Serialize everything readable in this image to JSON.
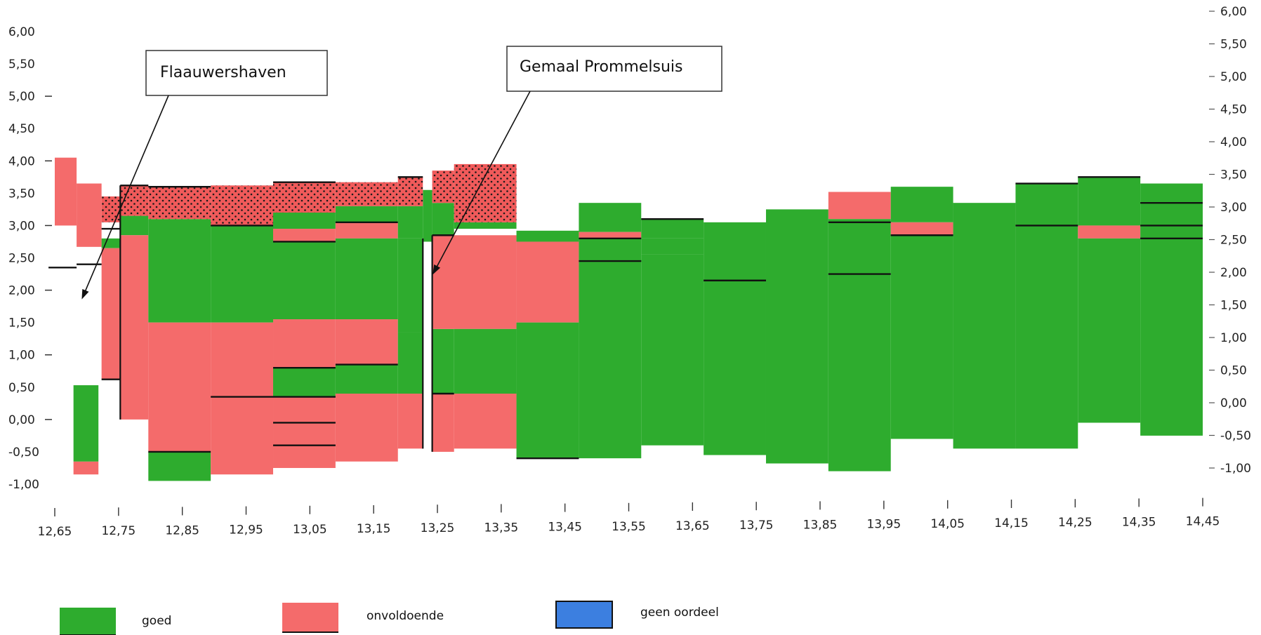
{
  "chart_data": {
    "type": "area",
    "x_axis": {
      "range": [
        12.65,
        14.49
      ],
      "ticks": [
        "12,65",
        "12,75",
        "12,85",
        "12,95",
        "13,05",
        "13,15",
        "13,25",
        "13,35",
        "13,45",
        "13,55",
        "13,65",
        "13,75",
        "13,85",
        "13,95",
        "14,05",
        "14,15",
        "14,25",
        "14,35",
        "14,45"
      ]
    },
    "y_axis_left": {
      "range": [
        -1.0,
        6.0
      ],
      "ticks": [
        "6,00",
        "5,50",
        "5,00",
        "4,50",
        "4,00",
        "3,50",
        "3,00",
        "2,50",
        "2,00",
        "1,50",
        "1,00",
        "0,50",
        "0,00",
        "-0,50",
        "-1,00"
      ]
    },
    "y_axis_right": {
      "range": [
        -1.0,
        6.0
      ],
      "ticks": [
        "6,00",
        "5,50",
        "5,00",
        "4,50",
        "4,00",
        "3,50",
        "3,00",
        "2,50",
        "2,00",
        "1,50",
        "1,00",
        "0,50",
        "0,00",
        "-0,50",
        "-1,00"
      ]
    },
    "categories": [
      "goed",
      "onvoldoende",
      "geen oordeel"
    ],
    "colors": {
      "goed": "#2eac2e",
      "onvoldoende": "#f46b6b",
      "geen oordeel": "#3c7fe0",
      "dotted": "#f05a5a",
      "line": "#111111"
    },
    "blocks": [
      {
        "x0": 12.65,
        "x1": 12.685,
        "y0": 3.0,
        "y1": 4.05,
        "c": "onvoldoende"
      },
      {
        "x0": 12.685,
        "x1": 12.725,
        "y0": 2.67,
        "y1": 3.65,
        "c": "onvoldoende"
      },
      {
        "x0": 12.68,
        "x1": 12.72,
        "y0": -0.85,
        "y1": -0.65,
        "c": "onvoldoende"
      },
      {
        "x0": 12.68,
        "x1": 12.72,
        "y0": -0.65,
        "y1": 0.53,
        "c": "goed"
      },
      {
        "x0": 12.725,
        "x1": 12.755,
        "y0": 2.65,
        "y1": 2.8,
        "c": "goed"
      },
      {
        "x0": 12.725,
        "x1": 12.755,
        "y0": 0.63,
        "y1": 2.65,
        "c": "onvoldoende"
      },
      {
        "x0": 12.755,
        "x1": 12.8,
        "y0": 2.85,
        "y1": 3.15,
        "c": "goed"
      },
      {
        "x0": 12.755,
        "x1": 12.8,
        "y0": 0.0,
        "y1": 2.85,
        "c": "onvoldoende"
      },
      {
        "x0": 12.8,
        "x1": 12.9,
        "y0": 1.5,
        "y1": 3.1,
        "c": "goed"
      },
      {
        "x0": 12.8,
        "x1": 12.9,
        "y0": -0.5,
        "y1": 1.5,
        "c": "onvoldoende"
      },
      {
        "x0": 12.8,
        "x1": 12.9,
        "y0": -0.95,
        "y1": -0.5,
        "c": "goed"
      },
      {
        "x0": 12.9,
        "x1": 13.0,
        "y0": 1.5,
        "y1": 3.0,
        "c": "goed"
      },
      {
        "x0": 12.9,
        "x1": 13.0,
        "y0": 0.35,
        "y1": 1.5,
        "c": "onvoldoende"
      },
      {
        "x0": 12.9,
        "x1": 13.0,
        "y0": -0.85,
        "y1": 0.35,
        "c": "onvoldoende"
      },
      {
        "x0": 13.0,
        "x1": 13.1,
        "y0": 2.95,
        "y1": 3.2,
        "c": "goed"
      },
      {
        "x0": 13.0,
        "x1": 13.1,
        "y0": 2.75,
        "y1": 2.95,
        "c": "onvoldoende"
      },
      {
        "x0": 13.0,
        "x1": 13.1,
        "y0": 1.55,
        "y1": 2.75,
        "c": "goed"
      },
      {
        "x0": 13.0,
        "x1": 13.1,
        "y0": 0.8,
        "y1": 1.55,
        "c": "onvoldoende"
      },
      {
        "x0": 13.0,
        "x1": 13.1,
        "y0": 0.35,
        "y1": 0.8,
        "c": "goed"
      },
      {
        "x0": 13.0,
        "x1": 13.1,
        "y0": -0.75,
        "y1": 0.35,
        "c": "onvoldoende"
      },
      {
        "x0": 13.1,
        "x1": 13.2,
        "y0": 3.05,
        "y1": 3.3,
        "c": "goed"
      },
      {
        "x0": 13.1,
        "x1": 13.2,
        "y0": 2.8,
        "y1": 3.05,
        "c": "onvoldoende"
      },
      {
        "x0": 13.1,
        "x1": 13.2,
        "y0": 1.55,
        "y1": 2.8,
        "c": "goed"
      },
      {
        "x0": 13.1,
        "x1": 13.2,
        "y0": 0.85,
        "y1": 1.55,
        "c": "onvoldoende"
      },
      {
        "x0": 13.1,
        "x1": 13.2,
        "y0": 0.4,
        "y1": 0.85,
        "c": "goed"
      },
      {
        "x0": 13.1,
        "x1": 13.2,
        "y0": -0.65,
        "y1": 0.4,
        "c": "onvoldoende"
      },
      {
        "x0": 13.2,
        "x1": 13.24,
        "y0": 2.8,
        "y1": 3.3,
        "c": "goed"
      },
      {
        "x0": 13.2,
        "x1": 13.24,
        "y0": 1.35,
        "y1": 2.8,
        "c": "goed"
      },
      {
        "x0": 13.2,
        "x1": 13.24,
        "y0": 0.4,
        "y1": 1.35,
        "c": "goed"
      },
      {
        "x0": 13.2,
        "x1": 13.24,
        "y0": -0.45,
        "y1": 0.4,
        "c": "onvoldoende"
      },
      {
        "x0": 13.24,
        "x1": 13.255,
        "y0": 2.75,
        "y1": 3.55,
        "c": "goed"
      },
      {
        "x0": 13.255,
        "x1": 13.29,
        "y0": 2.85,
        "y1": 3.35,
        "c": "goed"
      },
      {
        "x0": 13.255,
        "x1": 13.29,
        "y0": 2.8,
        "y1": 2.85,
        "c": "onvoldoende"
      },
      {
        "x0": 13.255,
        "x1": 13.29,
        "y0": 0.4,
        "y1": 1.4,
        "c": "goed"
      },
      {
        "x0": 13.255,
        "x1": 13.29,
        "y0": -0.5,
        "y1": 0.4,
        "c": "onvoldoende"
      },
      {
        "x0": 13.29,
        "x1": 13.39,
        "y0": 2.95,
        "y1": 3.05,
        "c": "goed"
      },
      {
        "x0": 13.255,
        "x1": 13.39,
        "y0": 1.4,
        "y1": 2.85,
        "c": "onvoldoende"
      },
      {
        "x0": 13.29,
        "x1": 13.39,
        "y0": 0.4,
        "y1": 1.4,
        "c": "goed"
      },
      {
        "x0": 13.29,
        "x1": 13.39,
        "y0": -0.45,
        "y1": 0.4,
        "c": "onvoldoende"
      },
      {
        "x0": 13.39,
        "x1": 13.49,
        "y0": 2.75,
        "y1": 2.92,
        "c": "goed"
      },
      {
        "x0": 13.39,
        "x1": 13.49,
        "y0": 1.5,
        "y1": 2.75,
        "c": "onvoldoende"
      },
      {
        "x0": 13.39,
        "x1": 13.49,
        "y0": -0.6,
        "y1": 1.5,
        "c": "goed"
      },
      {
        "x0": 13.49,
        "x1": 13.59,
        "y0": 2.9,
        "y1": 3.35,
        "c": "goed"
      },
      {
        "x0": 13.49,
        "x1": 13.59,
        "y0": 2.8,
        "y1": 2.9,
        "c": "onvoldoende"
      },
      {
        "x0": 13.49,
        "x1": 13.59,
        "y0": -0.6,
        "y1": 2.8,
        "c": "goed"
      },
      {
        "x0": 13.59,
        "x1": 13.69,
        "y0": 2.8,
        "y1": 3.1,
        "c": "goed"
      },
      {
        "x0": 13.59,
        "x1": 13.69,
        "y0": 2.55,
        "y1": 2.8,
        "c": "goed"
      },
      {
        "x0": 13.59,
        "x1": 13.69,
        "y0": -0.4,
        "y1": 2.55,
        "c": "goed"
      },
      {
        "x0": 13.69,
        "x1": 13.79,
        "y0": -0.55,
        "y1": 3.05,
        "c": "goed"
      },
      {
        "x0": 13.79,
        "x1": 13.89,
        "y0": -0.68,
        "y1": 3.25,
        "c": "goed"
      },
      {
        "x0": 13.89,
        "x1": 13.99,
        "y0": 3.1,
        "y1": 3.52,
        "c": "onvoldoende"
      },
      {
        "x0": 13.89,
        "x1": 13.99,
        "y0": -0.8,
        "y1": 3.1,
        "c": "goed"
      },
      {
        "x0": 13.99,
        "x1": 14.09,
        "y0": 3.05,
        "y1": 3.6,
        "c": "goed"
      },
      {
        "x0": 13.99,
        "x1": 14.09,
        "y0": 2.85,
        "y1": 3.05,
        "c": "onvoldoende"
      },
      {
        "x0": 13.99,
        "x1": 14.09,
        "y0": -0.3,
        "y1": 2.85,
        "c": "goed"
      },
      {
        "x0": 14.09,
        "x1": 14.19,
        "y0": -0.45,
        "y1": 3.35,
        "c": "goed"
      },
      {
        "x0": 14.19,
        "x1": 14.29,
        "y0": -0.45,
        "y1": 3.65,
        "c": "goed"
      },
      {
        "x0": 14.29,
        "x1": 14.39,
        "y0": 3.0,
        "y1": 3.75,
        "c": "goed"
      },
      {
        "x0": 14.29,
        "x1": 14.39,
        "y0": 2.8,
        "y1": 3.0,
        "c": "onvoldoende"
      },
      {
        "x0": 14.29,
        "x1": 14.39,
        "y0": -0.05,
        "y1": 2.8,
        "c": "goed"
      },
      {
        "x0": 14.39,
        "x1": 14.49,
        "y0": -0.25,
        "y1": 3.65,
        "c": "goed"
      }
    ],
    "dotted_blocks": [
      {
        "x0": 12.725,
        "x1": 12.755,
        "y0": 3.05,
        "y1": 3.45
      },
      {
        "x0": 12.755,
        "x1": 12.8,
        "y0": 3.15,
        "y1": 3.62
      },
      {
        "x0": 12.8,
        "x1": 12.9,
        "y0": 3.1,
        "y1": 3.6
      },
      {
        "x0": 12.9,
        "x1": 13.0,
        "y0": 3.0,
        "y1": 3.62
      },
      {
        "x0": 13.0,
        "x1": 13.1,
        "y0": 3.2,
        "y1": 3.67
      },
      {
        "x0": 13.1,
        "x1": 13.2,
        "y0": 3.3,
        "y1": 3.67
      },
      {
        "x0": 13.2,
        "x1": 13.24,
        "y0": 3.3,
        "y1": 3.75
      },
      {
        "x0": 13.255,
        "x1": 13.29,
        "y0": 3.35,
        "y1": 3.85
      },
      {
        "x0": 13.29,
        "x1": 13.39,
        "y0": 3.05,
        "y1": 3.95
      }
    ],
    "lines": [
      {
        "x0": 12.64,
        "x1": 12.685,
        "y": 2.35
      },
      {
        "x0": 12.685,
        "x1": 12.725,
        "y": 2.4
      },
      {
        "x0": 12.725,
        "x1": 12.755,
        "y": 2.95
      },
      {
        "x0": 12.725,
        "x1": 12.755,
        "y": 0.62
      },
      {
        "x0": 12.755,
        "x1": 12.8,
        "y": 3.62
      },
      {
        "x0": 12.8,
        "x1": 12.9,
        "y": 3.6
      },
      {
        "x0": 12.8,
        "x1": 12.9,
        "y": -0.5
      },
      {
        "x0": 12.9,
        "x1": 13.0,
        "y": 3.0
      },
      {
        "x0": 12.9,
        "x1": 13.0,
        "y": 0.35
      },
      {
        "x0": 13.0,
        "x1": 13.1,
        "y": 3.67
      },
      {
        "x0": 13.0,
        "x1": 13.1,
        "y": 2.75
      },
      {
        "x0": 13.0,
        "x1": 13.1,
        "y": 0.8
      },
      {
        "x0": 13.0,
        "x1": 13.1,
        "y": 0.35
      },
      {
        "x0": 13.0,
        "x1": 13.1,
        "y": -0.05
      },
      {
        "x0": 13.0,
        "x1": 13.1,
        "y": -0.4
      },
      {
        "x0": 13.1,
        "x1": 13.2,
        "y": 3.05
      },
      {
        "x0": 13.1,
        "x1": 13.2,
        "y": 0.85
      },
      {
        "x0": 13.2,
        "x1": 13.24,
        "y": 3.75
      },
      {
        "x0": 13.255,
        "x1": 13.29,
        "y": 2.85
      },
      {
        "x0": 13.255,
        "x1": 13.29,
        "y": 0.4
      },
      {
        "x0": 13.39,
        "x1": 13.49,
        "y": -0.6
      },
      {
        "x0": 13.49,
        "x1": 13.59,
        "y": 2.45
      },
      {
        "x0": 13.49,
        "x1": 13.59,
        "y": 2.8
      },
      {
        "x0": 13.59,
        "x1": 13.69,
        "y": 3.1
      },
      {
        "x0": 13.69,
        "x1": 13.79,
        "y": 2.15
      },
      {
        "x0": 13.89,
        "x1": 13.99,
        "y": 3.05
      },
      {
        "x0": 13.89,
        "x1": 13.99,
        "y": 2.25
      },
      {
        "x0": 13.99,
        "x1": 14.09,
        "y": 2.85
      },
      {
        "x0": 14.19,
        "x1": 14.29,
        "y": 3.0
      },
      {
        "x0": 14.19,
        "x1": 14.29,
        "y": 3.65
      },
      {
        "x0": 14.29,
        "x1": 14.39,
        "y": 3.75
      },
      {
        "x0": 14.39,
        "x1": 14.49,
        "y": 3.35
      },
      {
        "x0": 14.39,
        "x1": 14.49,
        "y": 3.0
      },
      {
        "x0": 14.39,
        "x1": 14.49,
        "y": 2.8
      }
    ],
    "vlines": [
      {
        "x": 12.755,
        "y0": 0.0,
        "y1": 3.62
      },
      {
        "x": 13.24,
        "y0": -0.45,
        "y1": 2.8
      },
      {
        "x": 13.255,
        "y0": -0.5,
        "y1": 2.85
      }
    ],
    "annotations": [
      {
        "text": "Flaauwershaven"
      },
      {
        "text": "Gemaal Prommelsuis"
      }
    ],
    "legend": {
      "placement": "bottom",
      "entries": [
        {
          "label": "goed",
          "c": "goed"
        },
        {
          "label": "onvoldoende",
          "c": "onvoldoende"
        },
        {
          "label": "geen oordeel",
          "c": "geen oordeel"
        }
      ]
    }
  }
}
